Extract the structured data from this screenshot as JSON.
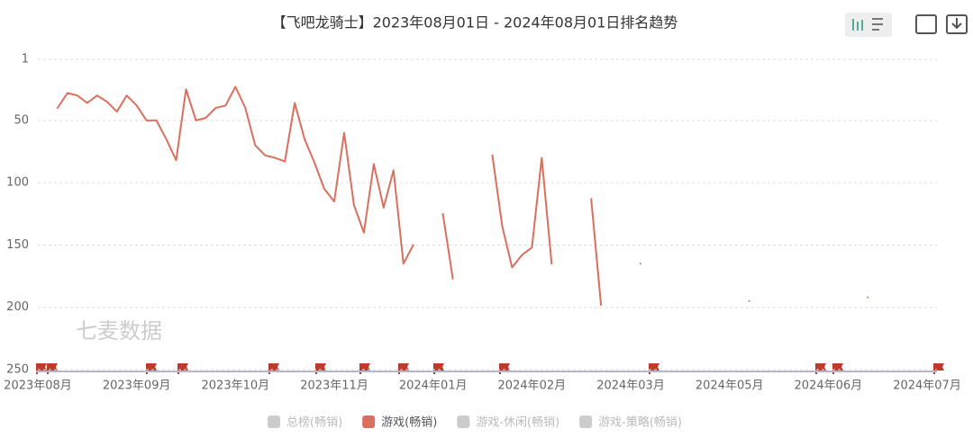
{
  "chart_data": {
    "type": "line",
    "title": "【飞吧龙骑士】2023年08月01日 - 2024年08月01日排名趋势",
    "watermark": "七麦数据",
    "categories": [
      "2023年08月",
      null,
      null,
      null,
      null,
      null,
      null,
      null,
      null,
      null,
      "2023年09月",
      null,
      null,
      null,
      null,
      null,
      null,
      null,
      null,
      null,
      "2023年10月",
      null,
      null,
      null,
      null,
      null,
      null,
      null,
      null,
      null,
      "2023年11月",
      null,
      null,
      null,
      null,
      null,
      null,
      null,
      null,
      null,
      "2024年01月",
      null,
      null,
      null,
      null,
      null,
      null,
      null,
      null,
      null,
      "2024年02月",
      null,
      null,
      null,
      null,
      null,
      null,
      null,
      null,
      null,
      "2024年03月",
      null,
      null,
      null,
      null,
      null,
      null,
      null,
      null,
      null,
      "2024年05月",
      null,
      null,
      null,
      null,
      null,
      null,
      null,
      null,
      null,
      "2024年06月",
      null,
      null,
      null,
      null,
      null,
      null,
      null,
      null,
      null,
      "2024年07月",
      null
    ],
    "series": [
      {
        "name": "游戏(畅销)",
        "color": "#d9705f",
        "values": [
          null,
          null,
          40,
          28,
          30,
          36,
          30,
          35,
          43,
          30,
          38,
          50,
          50,
          65,
          82,
          25,
          50,
          48,
          40,
          38,
          23,
          40,
          70,
          78,
          80,
          83,
          36,
          65,
          84,
          105,
          115,
          60,
          118,
          140,
          85,
          120,
          90,
          165,
          150,
          null,
          null,
          125,
          177,
          null,
          null,
          null,
          78,
          135,
          168,
          158,
          152,
          80,
          165,
          null,
          null,
          null,
          113,
          198,
          null,
          null,
          null,
          165,
          null,
          null,
          null,
          null,
          null,
          null,
          null,
          null,
          null,
          null,
          195,
          null,
          null,
          null,
          null,
          null,
          null,
          null,
          null,
          null,
          null,
          null,
          192,
          null,
          null,
          null,
          null,
          null,
          null,
          null
        ]
      }
    ],
    "inactive_series": [
      "总榜(畅销)",
      "游戏-休闲(畅销)",
      "游戏-策略(畅销)"
    ],
    "inactive_color": "#cccccc",
    "ylim": [
      1,
      250
    ],
    "y_inverted": true,
    "yticks": [
      1,
      50,
      100,
      150,
      200,
      250
    ],
    "grid": true
  }
}
